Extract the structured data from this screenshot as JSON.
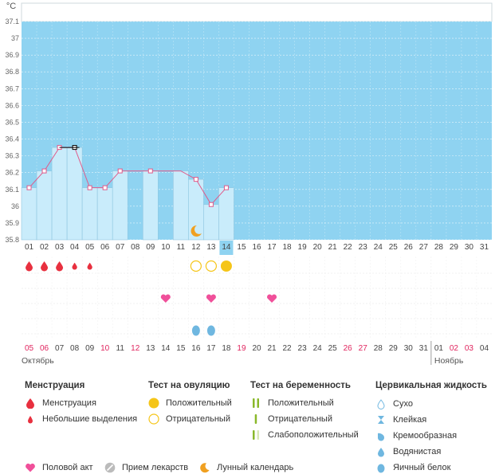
{
  "chart_data": {
    "type": "line",
    "unit_label": "°C",
    "y_ticks": [
      "37.1",
      "37",
      "36.9",
      "36.8",
      "36.7",
      "36.6",
      "36.5",
      "36.4",
      "36.3",
      "36.2",
      "36.1",
      "36",
      "35.9",
      "35.8"
    ],
    "ylim": [
      35.8,
      37.1
    ],
    "days_top": [
      "01",
      "02",
      "03",
      "04",
      "05",
      "06",
      "07",
      "08",
      "09",
      "10",
      "11",
      "12",
      "13",
      "14",
      "15",
      "16",
      "17",
      "18",
      "19",
      "20",
      "21",
      "22",
      "23",
      "24",
      "25",
      "26",
      "27",
      "28",
      "29",
      "30",
      "31"
    ],
    "dates_bottom": [
      "05",
      "06",
      "07",
      "08",
      "09",
      "10",
      "11",
      "12",
      "13",
      "14",
      "15",
      "16",
      "17",
      "18",
      "19",
      "20",
      "21",
      "22",
      "23",
      "24",
      "25",
      "26",
      "27",
      "28",
      "29",
      "30",
      "31",
      "01",
      "02",
      "03",
      "04"
    ],
    "red_date_indices": [
      0,
      1,
      5,
      7,
      14,
      21,
      22,
      28,
      29
    ],
    "month_left": "Октябрь",
    "month_right": "Ноябрь",
    "current_day": "14",
    "current_date": "18",
    "temperatures": [
      {
        "day": 1,
        "value": 36.11
      },
      {
        "day": 2,
        "value": 36.21
      },
      {
        "day": 3,
        "value": 36.35
      },
      {
        "day": 4,
        "value": 36.35
      },
      {
        "day": 5,
        "value": 36.11
      },
      {
        "day": 6,
        "value": 36.11
      },
      {
        "day": 7,
        "value": 36.21
      },
      {
        "day": 8,
        "value": 36.21
      },
      {
        "day": 9,
        "value": 36.21
      },
      {
        "day": 10,
        "value": 36.21
      },
      {
        "day": 11,
        "value": 36.21
      },
      {
        "day": 12,
        "value": 36.16
      },
      {
        "day": 13,
        "value": 36.01
      },
      {
        "day": 14,
        "value": 36.11
      }
    ],
    "interpolated_days": [
      8,
      10,
      11
    ],
    "bars": [
      {
        "day": 1,
        "value": 36.11
      },
      {
        "day": 2,
        "value": 36.21
      },
      {
        "day": 3,
        "value": 36.35
      },
      {
        "day": 4,
        "value": 36.35
      },
      {
        "day": 5,
        "value": 36.11
      },
      {
        "day": 6,
        "value": 36.11
      },
      {
        "day": 7,
        "value": 36.21
      },
      {
        "day": 9,
        "value": 36.21
      },
      {
        "day": 11,
        "value": 36.21
      },
      {
        "day": 12,
        "value": 36.16
      },
      {
        "day": 13,
        "value": 36.01
      },
      {
        "day": 14,
        "value": 36.11
      }
    ],
    "moon_day": 12,
    "rows": {
      "menstruation": [
        {
          "day": 1,
          "type": "full"
        },
        {
          "day": 2,
          "type": "full"
        },
        {
          "day": 3,
          "type": "full"
        },
        {
          "day": 4,
          "type": "light"
        },
        {
          "day": 5,
          "type": "light"
        }
      ],
      "ovulation": [
        {
          "day": 12,
          "type": "negative"
        },
        {
          "day": 13,
          "type": "negative"
        },
        {
          "day": 14,
          "type": "positive"
        }
      ],
      "sex": [
        10,
        13,
        17
      ],
      "fluid": [
        {
          "day": 12,
          "type": "egg_white"
        },
        {
          "day": 13,
          "type": "egg_white"
        }
      ]
    },
    "colors": {
      "sky": "#8fd3f1",
      "bar": "#c9ecfb",
      "bar_border": "#8fc6e0",
      "line": "#e05a8a",
      "red": "#e8303f",
      "pink": "#f0509a",
      "yellow": "#f5c518",
      "orange": "#f0a020",
      "today": "#8fd3f1"
    }
  },
  "legend": {
    "menstruation": {
      "title": "Менструация",
      "items": [
        "Менструация",
        "Небольшие выделения"
      ]
    },
    "ovulation": {
      "title": "Тест на овуляцию",
      "items": [
        "Положительный",
        "Отрицательный"
      ]
    },
    "pregnancy": {
      "title": "Тест на беременность",
      "items": [
        "Положительный",
        "Отрицательный",
        "Слабоположительный"
      ]
    },
    "fluid": {
      "title": "Цервикальная жидкость",
      "items": [
        "Сухо",
        "Клейкая",
        "Кремообразная",
        "Водянистая",
        "Яичный белок"
      ]
    },
    "bottom": [
      "Половой акт",
      "Прием лекарств",
      "Лунный календарь"
    ]
  }
}
